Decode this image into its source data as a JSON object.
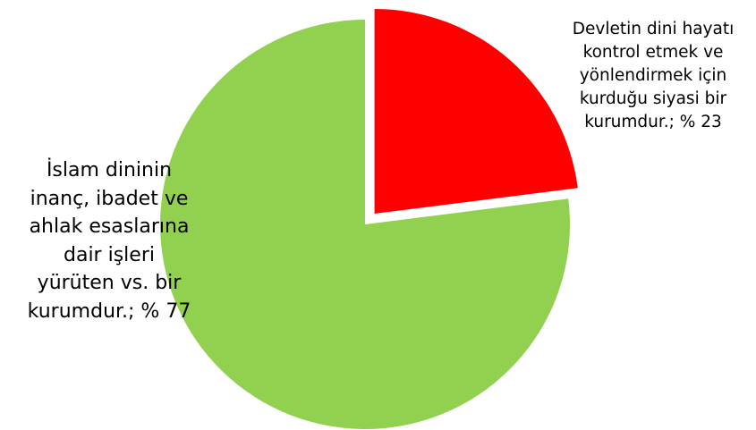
{
  "chart_data": {
    "type": "pie",
    "slices": [
      {
        "label": "Devletin dini hayatı\nkontrol etmek ve\nyönlendirmek için\nkurduğu siyasi bir\nkurumdur.; % 23",
        "value": 23,
        "color": "#ff0000",
        "exploded": true
      },
      {
        "label": "İslam dininin\ninanç, ibadet ve\nahlak esaslarına\ndair işleri\nyürüten vs. bir\nkurumdur.; % 77",
        "value": 77,
        "color": "#92d050",
        "exploded": false
      }
    ],
    "start_angle": "12 o'clock",
    "direction": "clockwise",
    "legend": "none",
    "data_labels": "category and value"
  }
}
